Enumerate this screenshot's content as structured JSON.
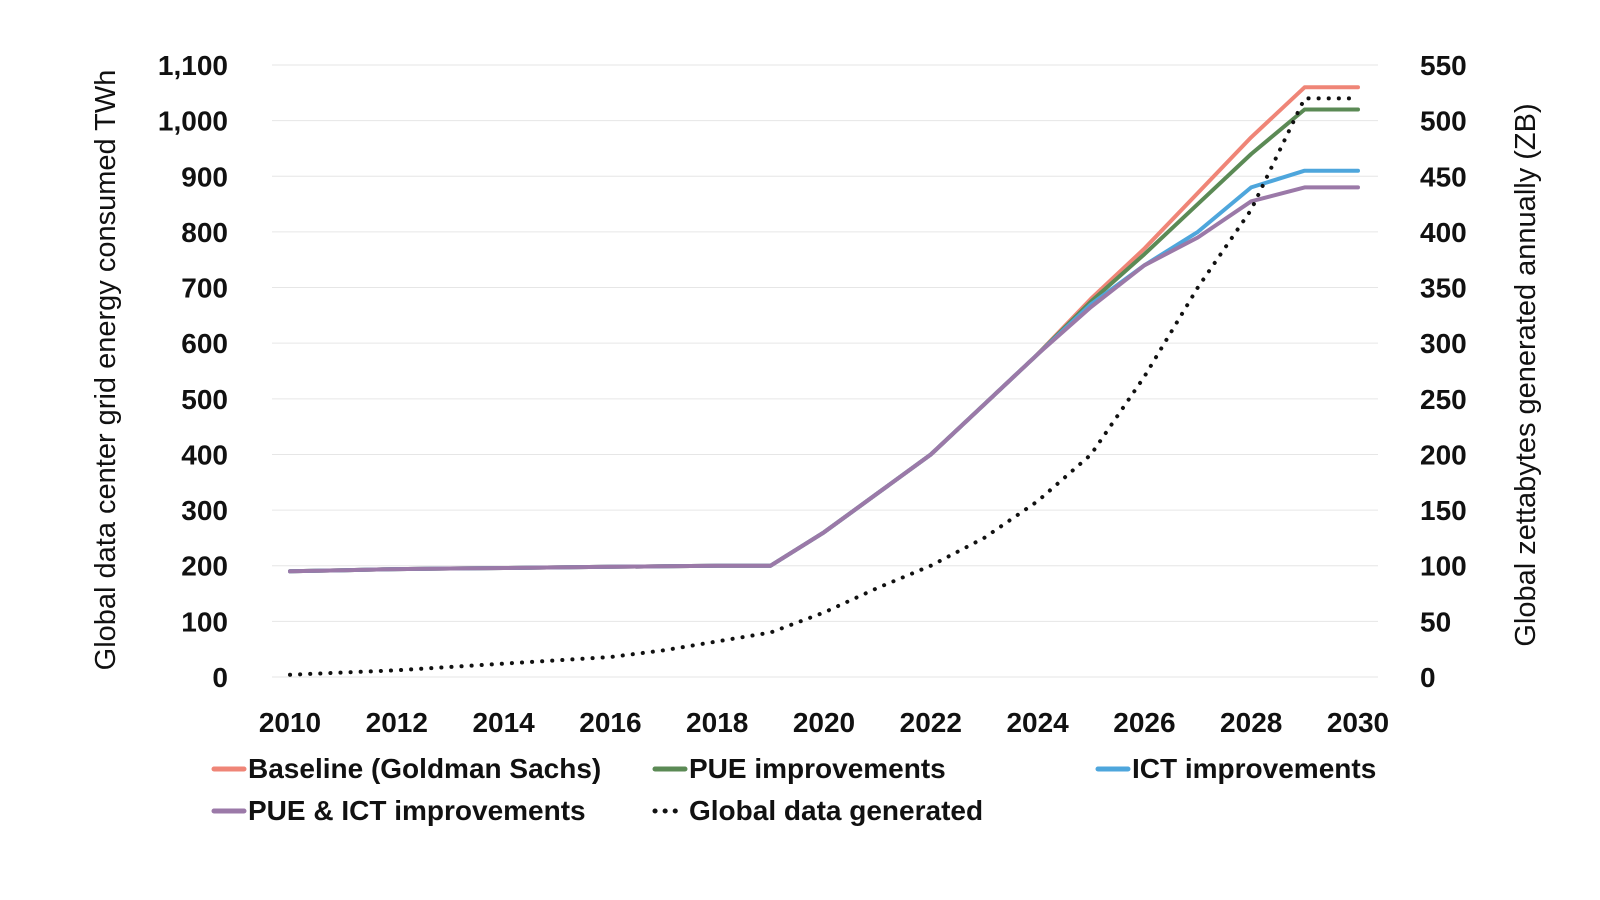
{
  "edge_glyph": "˃",
  "chart_data": {
    "type": "line",
    "title": "",
    "x": [
      2010,
      2011,
      2012,
      2013,
      2014,
      2015,
      2016,
      2017,
      2018,
      2019,
      2020,
      2021,
      2022,
      2023,
      2024,
      2025,
      2026,
      2027,
      2028,
      2029,
      2030
    ],
    "xticks": [
      2010,
      2012,
      2014,
      2016,
      2018,
      2020,
      2022,
      2024,
      2026,
      2028,
      2030
    ],
    "xlim": [
      2010,
      2030
    ],
    "ylabel": "Global data center grid energy consumed  TWh",
    "ylim": [
      0,
      1100
    ],
    "yticks": [
      0,
      100,
      200,
      300,
      400,
      500,
      600,
      700,
      800,
      900,
      1000,
      1100
    ],
    "ytick_labels": [
      "0",
      "100",
      "200",
      "300",
      "400",
      "500",
      "600",
      "700",
      "800",
      "900",
      "1,000",
      "1,100"
    ],
    "y2label": "Global zettabytes generated annually (ZB)",
    "y2lim": [
      0,
      550
    ],
    "y2ticks": [
      0,
      50,
      100,
      150,
      200,
      250,
      300,
      350,
      400,
      450,
      500,
      550
    ],
    "grid": true,
    "legend_position": "bottom",
    "series": [
      {
        "name": "Baseline (Goldman Sachs)",
        "color": "#ef8577",
        "axis": "left",
        "style": "solid",
        "values": [
          190,
          192,
          194,
          195,
          196,
          197,
          198,
          199,
          200,
          200,
          260,
          330,
          400,
          490,
          580,
          680,
          770,
          870,
          970,
          1060,
          1060
        ]
      },
      {
        "name": "PUE improvements",
        "color": "#5b8a55",
        "axis": "left",
        "style": "solid",
        "values": [
          190,
          192,
          194,
          195,
          196,
          197,
          198,
          199,
          200,
          200,
          260,
          330,
          400,
          490,
          580,
          675,
          760,
          850,
          940,
          1020,
          1020
        ]
      },
      {
        "name": "ICT improvements",
        "color": "#4ea6dc",
        "axis": "left",
        "style": "solid",
        "values": [
          190,
          192,
          194,
          195,
          196,
          197,
          198,
          199,
          200,
          200,
          260,
          330,
          400,
          490,
          580,
          670,
          740,
          800,
          880,
          910,
          910
        ]
      },
      {
        "name": "PUE & ICT improvements",
        "color": "#9b79a8",
        "axis": "left",
        "style": "solid",
        "values": [
          190,
          192,
          194,
          195,
          196,
          197,
          198,
          199,
          200,
          200,
          260,
          330,
          400,
          490,
          580,
          665,
          740,
          790,
          855,
          880,
          880
        ]
      },
      {
        "name": "Global data generated",
        "color": "#111111",
        "axis": "right",
        "style": "dotted",
        "values": [
          2,
          4,
          6,
          9,
          12,
          15,
          18,
          24,
          32,
          40,
          58,
          80,
          100,
          125,
          158,
          200,
          270,
          350,
          420,
          520,
          520
        ]
      }
    ]
  }
}
